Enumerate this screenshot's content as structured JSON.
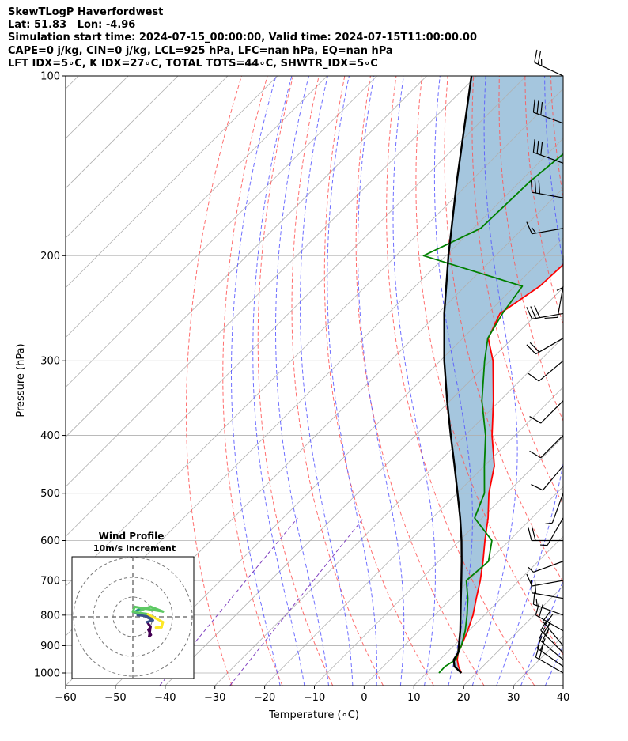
{
  "header": {
    "line1": "SkewTLogP Haverfordwest",
    "line2": "Lat: 51.83   Lon: -4.96",
    "line3": "Simulation start time: 2024-07-15_00:00:00, Valid time: 2024-07-15T11:00:00.00",
    "line4": "CAPE=0 j/kg, CIN=0 j/kg, LCL=925 hPa, LFC=nan hPa, EQ=nan hPa",
    "line5": "LFT IDX=5∘C, K IDX=27∘C, TOTAL TOTS=44∘C, SHWTR_IDX=5∘C"
  },
  "chart_data": {
    "type": "line",
    "xlabel": "Temperature (∘C)",
    "ylabel": "Pressure (hPa)",
    "xlim": [
      -60,
      40
    ],
    "ylim": [
      1050,
      100
    ],
    "y_scale": "log",
    "x_ticks": [
      -60,
      -50,
      -40,
      -30,
      -20,
      -10,
      0,
      10,
      20,
      30,
      40
    ],
    "x_tick_labels": [
      "−60",
      "−50",
      "−40",
      "−30",
      "−20",
      "−10",
      "0",
      "10",
      "20",
      "30",
      "40"
    ],
    "y_ticks": [
      1000,
      900,
      800,
      700,
      600,
      500,
      400,
      300,
      200,
      100
    ],
    "y_tick_labels": [
      "1000",
      "900",
      "800",
      "700",
      "600",
      "500",
      "400",
      "300",
      "200",
      "100"
    ],
    "grid": true,
    "colors": {
      "temperature": "#ff0000",
      "dewpoint": "#008000",
      "parcel": "#000000",
      "fill": "#a5c6de",
      "dry_adiabat": "#ff5555",
      "moist_adiabat": "#5555ff",
      "mixing_ratio": "#7f3fbf",
      "isotherm": "#b0b0b0"
    },
    "series": [
      {
        "key": "temperature",
        "pressure": [
          1000,
          975,
          950,
          925,
          900,
          850,
          800,
          750,
          700,
          650,
          600,
          550,
          500,
          450,
          400,
          350,
          300,
          275,
          250,
          225,
          200,
          175,
          150,
          125,
          100
        ],
        "temp": [
          17,
          15.1,
          13.5,
          12.3,
          11.5,
          9.8,
          7.7,
          5.0,
          2.2,
          -1.1,
          -4.9,
          -8.8,
          -13.6,
          -18.0,
          -24.6,
          -31.3,
          -39.4,
          -44.9,
          -47.5,
          -45.0,
          -44.5,
          -45.0,
          -47.0,
          -50.5,
          -55.5
        ]
      },
      {
        "key": "dewpoint",
        "pressure": [
          1000,
          975,
          950,
          925,
          900,
          850,
          800,
          750,
          700,
          650,
          600,
          550,
          500,
          450,
          400,
          350,
          300,
          275,
          250,
          225,
          200,
          180,
          150,
          125,
          100
        ],
        "temp": [
          12.5,
          12.4,
          13.2,
          12.3,
          11.5,
          9.3,
          6.5,
          3.3,
          -0.6,
          0.0,
          -3.5,
          -11.5,
          -14.5,
          -20.0,
          -25.9,
          -33.6,
          -41.1,
          -45.0,
          -47.0,
          -48.5,
          -74.5,
          -68.5,
          -68.0,
          -66.0,
          -62.0
        ]
      },
      {
        "key": "parcel",
        "pressure": [
          1000,
          975,
          950,
          925,
          900,
          850,
          800,
          750,
          700,
          650,
          600,
          550,
          500,
          450,
          400,
          350,
          300,
          250,
          200,
          150,
          100
        ],
        "temp": [
          17,
          14.3,
          12.8,
          12.3,
          11.0,
          8.3,
          5.2,
          1.9,
          -1.6,
          -5.4,
          -9.6,
          -14.4,
          -19.9,
          -26.0,
          -32.9,
          -40.6,
          -49.2,
          -58.7,
          -69.5,
          -82.8,
          -101.0
        ]
      }
    ],
    "wind_barbs": {
      "pressure": [
        1000,
        975,
        950,
        925,
        900,
        850,
        800,
        750,
        700,
        650,
        600,
        550,
        500,
        450,
        400,
        350,
        300,
        275,
        250,
        225,
        200,
        180,
        160,
        140,
        120,
        100
      ],
      "speed_kt": [
        20,
        20,
        20,
        25,
        25,
        20,
        15,
        20,
        10,
        5,
        20,
        5,
        5,
        10,
        10,
        10,
        10,
        20,
        30,
        10,
        5,
        15,
        30,
        30,
        30,
        25
      ],
      "direction_deg": [
        300,
        305,
        310,
        315,
        320,
        300,
        290,
        280,
        260,
        250,
        270,
        210,
        200,
        220,
        225,
        225,
        230,
        240,
        260,
        190,
        180,
        260,
        280,
        290,
        290,
        295
      ]
    }
  },
  "hodograph": {
    "title": "Wind Profile",
    "subtitle": "10m/s increment",
    "ring_count": 3
  }
}
